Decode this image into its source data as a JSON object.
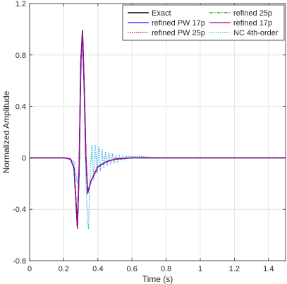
{
  "chart_data": {
    "type": "line",
    "title": "",
    "xlabel": "Time (s)",
    "ylabel": "Normalized Amplitude",
    "xlim": [
      0,
      1.5
    ],
    "ylim": [
      -0.8,
      1.2
    ],
    "xticks": [
      0,
      0.2,
      0.4,
      0.6,
      0.8,
      1,
      1.2,
      1.4
    ],
    "xtick_labels": [
      "0",
      "0.2",
      "0.4",
      "0.6",
      "0.8",
      "1",
      "1.2",
      "1.4"
    ],
    "yticks": [
      -0.8,
      -0.4,
      0,
      0.4,
      0.8,
      1.2
    ],
    "ytick_labels": [
      "-0.8",
      "-0.4",
      "0",
      "0.4",
      "0.8",
      "1.2"
    ],
    "grid": true,
    "legend_position": "top-right",
    "series": [
      {
        "name": "Exact",
        "color": "#000000",
        "style": "solid",
        "x": [
          0,
          0.2,
          0.24,
          0.26,
          0.27,
          0.28,
          0.29,
          0.3,
          0.31,
          0.32,
          0.33,
          0.34,
          0.36,
          0.4,
          0.45,
          0.5,
          0.6,
          0.8,
          1.0,
          1.2,
          1.5
        ],
        "y": [
          0,
          0,
          -0.01,
          -0.08,
          -0.3,
          -0.54,
          -0.1,
          0.75,
          0.99,
          0.55,
          0.0,
          -0.27,
          -0.18,
          -0.07,
          -0.03,
          -0.01,
          0,
          0,
          0,
          0,
          0
        ]
      },
      {
        "name": "refined 25p",
        "color": "#1a9a1a",
        "style": "dashdot",
        "x": [
          0,
          0.2,
          0.24,
          0.26,
          0.27,
          0.28,
          0.29,
          0.3,
          0.31,
          0.32,
          0.33,
          0.34,
          0.36,
          0.4,
          0.45,
          0.5,
          0.6,
          0.8,
          1.0,
          1.2,
          1.5
        ],
        "y": [
          0,
          0,
          -0.01,
          -0.08,
          -0.3,
          -0.54,
          -0.1,
          0.75,
          0.99,
          0.55,
          0.0,
          -0.27,
          -0.18,
          -0.07,
          -0.03,
          -0.01,
          0,
          0,
          0,
          0,
          0
        ]
      },
      {
        "name": "refined PW 17p",
        "color": "#1f1fff",
        "style": "solid",
        "x": [
          0,
          0.2,
          0.24,
          0.26,
          0.27,
          0.28,
          0.29,
          0.3,
          0.31,
          0.32,
          0.33,
          0.34,
          0.36,
          0.4,
          0.45,
          0.5,
          0.6,
          0.8,
          1.0,
          1.2,
          1.5
        ],
        "y": [
          0,
          0,
          -0.01,
          -0.08,
          -0.3,
          -0.54,
          -0.1,
          0.75,
          0.99,
          0.55,
          0.0,
          -0.27,
          -0.18,
          -0.07,
          -0.03,
          -0.01,
          0,
          0,
          0,
          0,
          0
        ]
      },
      {
        "name": "refined 17p",
        "color": "#a000a0",
        "style": "solid",
        "x": [
          0,
          0.2,
          0.24,
          0.26,
          0.27,
          0.28,
          0.29,
          0.3,
          0.31,
          0.32,
          0.33,
          0.34,
          0.36,
          0.4,
          0.45,
          0.5,
          0.6,
          0.8,
          1.0,
          1.2,
          1.5
        ],
        "y": [
          0,
          0,
          -0.01,
          -0.08,
          -0.3,
          -0.55,
          -0.1,
          0.74,
          0.98,
          0.55,
          0.0,
          -0.28,
          -0.18,
          -0.07,
          -0.03,
          -0.01,
          0,
          0,
          0,
          0,
          0
        ]
      },
      {
        "name": "refined PW 25p",
        "color": "#d40000",
        "style": "dotted",
        "x": [
          0,
          0.2,
          0.24,
          0.26,
          0.27,
          0.28,
          0.29,
          0.3,
          0.31,
          0.32,
          0.33,
          0.34,
          0.36,
          0.4,
          0.45,
          0.5,
          0.6,
          0.8,
          1.0,
          1.2,
          1.5
        ],
        "y": [
          0,
          0,
          -0.01,
          -0.08,
          -0.3,
          -0.54,
          -0.1,
          0.75,
          0.99,
          0.55,
          0.0,
          -0.27,
          -0.18,
          -0.07,
          -0.03,
          -0.01,
          0,
          0,
          0,
          0,
          0
        ]
      },
      {
        "name": "NC 4th-order",
        "color": "#33b0e6",
        "style": "dotted",
        "x": [
          0,
          0.22,
          0.26,
          0.28,
          0.29,
          0.3,
          0.31,
          0.32,
          0.33,
          0.34,
          0.345,
          0.355,
          0.365,
          0.375,
          0.385,
          0.395,
          0.405,
          0.415,
          0.425,
          0.435,
          0.445,
          0.455,
          0.465,
          0.475,
          0.485,
          0.495,
          0.505,
          0.515,
          0.525,
          0.535,
          0.545,
          0.555,
          0.565,
          0.58,
          0.6,
          0.65,
          0.7,
          0.8,
          1.0,
          1.2,
          1.5
        ],
        "y": [
          0,
          0,
          -0.03,
          -0.2,
          -0.05,
          0.6,
          0.98,
          0.5,
          -0.2,
          -0.5,
          -0.55,
          -0.1,
          0.1,
          -0.17,
          0.1,
          -0.12,
          0.09,
          -0.1,
          0.07,
          -0.08,
          0.05,
          -0.06,
          0.04,
          -0.05,
          0.03,
          -0.04,
          0.02,
          -0.03,
          0.02,
          -0.02,
          0.015,
          -0.015,
          0.01,
          0.01,
          0.01,
          0.01,
          0.005,
          0,
          0,
          0,
          0
        ]
      }
    ]
  }
}
